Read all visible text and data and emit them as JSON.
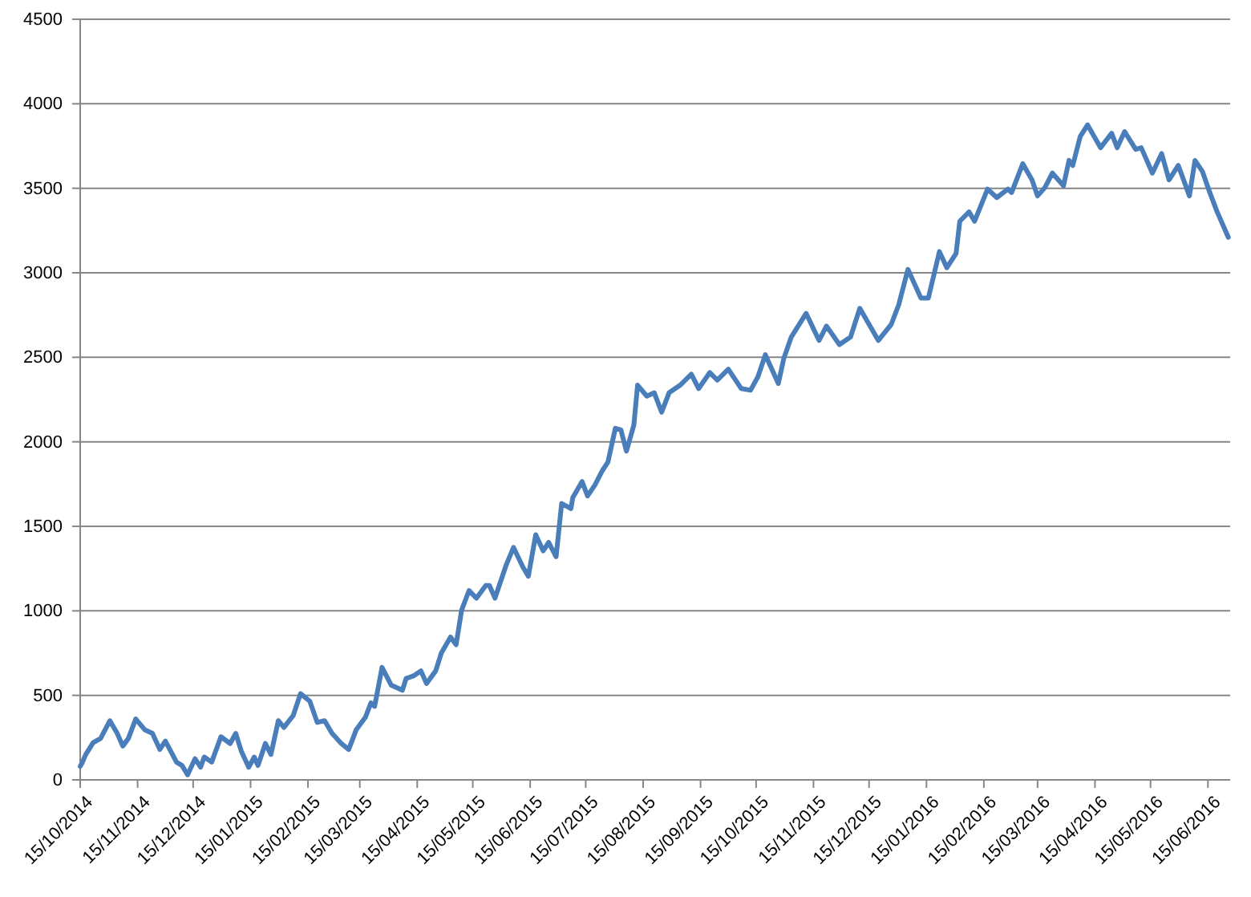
{
  "chart_data": {
    "type": "line",
    "grid": "y",
    "marker": "none",
    "line_style": "solid",
    "xlim": [
      "2014-10-15",
      "2016-06-27"
    ],
    "ylim": [
      0,
      4500
    ],
    "yticks": [
      0,
      500,
      1000,
      1500,
      2000,
      2500,
      3000,
      3500,
      4000,
      4500
    ],
    "xticks": [
      {
        "value": "2014-10-15",
        "label": "15/10/2014"
      },
      {
        "value": "2014-11-15",
        "label": "15/11/2014"
      },
      {
        "value": "2014-12-15",
        "label": "15/12/2014"
      },
      {
        "value": "2015-01-15",
        "label": "15/01/2015"
      },
      {
        "value": "2015-02-15",
        "label": "15/02/2015"
      },
      {
        "value": "2015-03-15",
        "label": "15/03/2015"
      },
      {
        "value": "2015-04-15",
        "label": "15/04/2015"
      },
      {
        "value": "2015-05-15",
        "label": "15/05/2015"
      },
      {
        "value": "2015-06-15",
        "label": "15/06/2015"
      },
      {
        "value": "2015-07-15",
        "label": "15/07/2015"
      },
      {
        "value": "2015-08-15",
        "label": "15/08/2015"
      },
      {
        "value": "2015-09-15",
        "label": "15/09/2015"
      },
      {
        "value": "2015-10-15",
        "label": "15/10/2015"
      },
      {
        "value": "2015-11-15",
        "label": "15/11/2015"
      },
      {
        "value": "2015-12-15",
        "label": "15/12/2015"
      },
      {
        "value": "2016-01-15",
        "label": "15/01/2016"
      },
      {
        "value": "2016-02-15",
        "label": "15/02/2016"
      },
      {
        "value": "2016-03-15",
        "label": "15/03/2016"
      },
      {
        "value": "2016-04-15",
        "label": "15/04/2016"
      },
      {
        "value": "2016-05-15",
        "label": "15/05/2016"
      },
      {
        "value": "2016-06-15",
        "label": "15/06/2016"
      }
    ],
    "x": [
      "2014-10-15",
      "2014-10-16",
      "2014-10-18",
      "2014-10-22",
      "2014-10-26",
      "2014-10-31",
      "2014-11-04",
      "2014-11-07",
      "2014-11-10",
      "2014-11-14",
      "2014-11-19",
      "2014-11-23",
      "2014-11-27",
      "2014-11-30",
      "2014-12-06",
      "2014-12-09",
      "2014-12-12",
      "2014-12-16",
      "2014-12-19",
      "2014-12-21",
      "2014-12-25",
      "2014-12-30",
      "2015-01-04",
      "2015-01-07",
      "2015-01-10",
      "2015-01-14",
      "2015-01-17",
      "2015-01-19",
      "2015-01-23",
      "2015-01-26",
      "2015-01-30",
      "2015-02-02",
      "2015-02-07",
      "2015-02-11",
      "2015-02-16",
      "2015-02-20",
      "2015-02-24",
      "2015-02-28",
      "2015-03-05",
      "2015-03-09",
      "2015-03-13",
      "2015-03-18",
      "2015-03-21",
      "2015-03-23",
      "2015-03-27",
      "2015-04-01",
      "2015-04-07",
      "2015-04-09",
      "2015-04-13",
      "2015-04-17",
      "2015-04-20",
      "2015-04-25",
      "2015-04-28",
      "2015-05-03",
      "2015-05-06",
      "2015-05-09",
      "2015-05-13",
      "2015-05-17",
      "2015-05-22",
      "2015-05-24",
      "2015-05-27",
      "2015-06-02",
      "2015-06-06",
      "2015-06-11",
      "2015-06-14",
      "2015-06-18",
      "2015-06-22",
      "2015-06-25",
      "2015-06-29",
      "2015-07-02",
      "2015-07-07",
      "2015-07-08",
      "2015-07-13",
      "2015-07-16",
      "2015-07-20",
      "2015-07-24",
      "2015-07-27",
      "2015-07-31",
      "2015-08-03",
      "2015-08-06",
      "2015-08-10",
      "2015-08-12",
      "2015-08-17",
      "2015-08-21",
      "2015-08-25",
      "2015-08-29",
      "2015-09-04",
      "2015-09-10",
      "2015-09-14",
      "2015-09-20",
      "2015-09-24",
      "2015-09-30",
      "2015-10-07",
      "2015-10-12",
      "2015-10-16",
      "2015-10-20",
      "2015-10-27",
      "2015-10-30",
      "2015-11-03",
      "2015-11-11",
      "2015-11-18",
      "2015-11-22",
      "2015-11-29",
      "2015-12-05",
      "2015-12-10",
      "2015-12-20",
      "2015-12-27",
      "2015-12-31",
      "2016-01-05",
      "2016-01-12",
      "2016-01-16",
      "2016-01-22",
      "2016-01-26",
      "2016-01-31",
      "2016-02-02",
      "2016-02-07",
      "2016-02-10",
      "2016-02-17",
      "2016-02-22",
      "2016-02-28",
      "2016-03-01",
      "2016-03-07",
      "2016-03-12",
      "2016-03-15",
      "2016-03-19",
      "2016-03-23",
      "2016-03-29",
      "2016-04-01",
      "2016-04-03",
      "2016-04-07",
      "2016-04-11",
      "2016-04-18",
      "2016-04-24",
      "2016-04-27",
      "2016-05-01",
      "2016-05-07",
      "2016-05-10",
      "2016-05-16",
      "2016-05-21",
      "2016-05-25",
      "2016-05-30",
      "2016-06-05",
      "2016-06-08",
      "2016-06-12",
      "2016-06-16",
      "2016-06-20",
      "2016-06-26"
    ],
    "series": [
      {
        "color": "#4a7ebb",
        "values": [
          80,
          100,
          150,
          220,
          245,
          350,
          275,
          200,
          245,
          360,
          295,
          275,
          180,
          230,
          105,
          85,
          30,
          125,
          75,
          135,
          105,
          255,
          215,
          275,
          170,
          75,
          135,
          85,
          215,
          150,
          350,
          310,
          380,
          510,
          465,
          340,
          350,
          275,
          215,
          180,
          295,
          370,
          455,
          435,
          665,
          560,
          530,
          600,
          615,
          645,
          570,
          645,
          750,
          845,
          800,
          1005,
          1120,
          1075,
          1150,
          1150,
          1075,
          1270,
          1375,
          1260,
          1205,
          1450,
          1355,
          1405,
          1320,
          1635,
          1605,
          1670,
          1765,
          1680,
          1745,
          1830,
          1880,
          2080,
          2070,
          1945,
          2100,
          2335,
          2270,
          2290,
          2175,
          2290,
          2335,
          2400,
          2315,
          2410,
          2365,
          2430,
          2315,
          2305,
          2385,
          2515,
          2345,
          2495,
          2620,
          2760,
          2600,
          2685,
          2575,
          2620,
          2790,
          2600,
          2695,
          2810,
          3020,
          2850,
          2850,
          3125,
          3030,
          3115,
          3305,
          3360,
          3305,
          3495,
          3445,
          3495,
          3475,
          3645,
          3550,
          3455,
          3505,
          3590,
          3515,
          3665,
          3635,
          3805,
          3875,
          3740,
          3825,
          3740,
          3835,
          3730,
          3740,
          3590,
          3705,
          3550,
          3635,
          3455,
          3665,
          3600,
          3475,
          3360,
          3210
        ]
      }
    ]
  }
}
